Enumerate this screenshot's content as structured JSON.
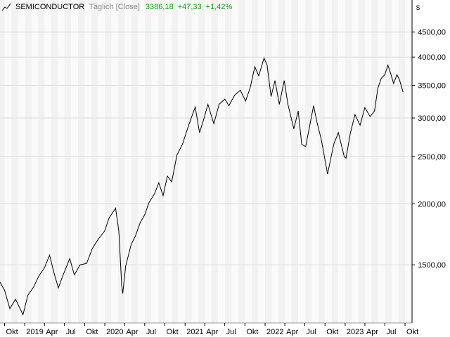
{
  "header": {
    "symbol": "SEMICONDUCTOR",
    "interval": "Täglich",
    "mode": "[Close]",
    "last": "3386,18",
    "change": "+47,33",
    "change_pct": "+1,42%",
    "currency": "$",
    "positive_color": "#1a9a1a"
  },
  "chart_data": {
    "type": "line",
    "yscale": "log",
    "ylim": [
      1140,
      4900
    ],
    "grid": true,
    "y_ticks": [
      {
        "value": 1500,
        "label": "1500,00"
      },
      {
        "value": 2000,
        "label": "2000,00"
      },
      {
        "value": 2500,
        "label": "2500,00"
      },
      {
        "value": 3000,
        "label": "3000,00"
      },
      {
        "value": 3500,
        "label": "3500,00"
      },
      {
        "value": 4000,
        "label": "4000,00"
      },
      {
        "value": 4500,
        "label": "4500,00"
      }
    ],
    "x_ticks": [
      {
        "date": "2018-10-01",
        "label": "Okt"
      },
      {
        "date": "2019-01-01",
        "label": "2019"
      },
      {
        "date": "2019-04-01",
        "label": "Apr"
      },
      {
        "date": "2019-07-01",
        "label": "Jul"
      },
      {
        "date": "2019-10-01",
        "label": "Okt"
      },
      {
        "date": "2020-01-01",
        "label": "2020"
      },
      {
        "date": "2020-04-01",
        "label": "Apr"
      },
      {
        "date": "2020-07-01",
        "label": "Jul"
      },
      {
        "date": "2020-10-01",
        "label": "Okt"
      },
      {
        "date": "2021-01-01",
        "label": "2021"
      },
      {
        "date": "2021-04-01",
        "label": "Apr"
      },
      {
        "date": "2021-07-01",
        "label": "Jul"
      },
      {
        "date": "2021-10-01",
        "label": "Okt"
      },
      {
        "date": "2022-01-01",
        "label": "2022"
      },
      {
        "date": "2022-04-01",
        "label": "Apr"
      },
      {
        "date": "2022-07-01",
        "label": "Jul"
      },
      {
        "date": "2022-10-01",
        "label": "Okt"
      },
      {
        "date": "2023-01-01",
        "label": "2023"
      },
      {
        "date": "2023-04-01",
        "label": "Apr"
      },
      {
        "date": "2023-07-01",
        "label": "Jul"
      },
      {
        "date": "2023-10-01",
        "label": "Okt"
      }
    ],
    "series": [
      {
        "color": "#000000",
        "points": [
          [
            "2018-09-05",
            1395
          ],
          [
            "2018-10-01",
            1330
          ],
          [
            "2018-10-25",
            1220
          ],
          [
            "2018-11-20",
            1275
          ],
          [
            "2018-12-24",
            1185
          ],
          [
            "2019-01-15",
            1300
          ],
          [
            "2019-02-10",
            1350
          ],
          [
            "2019-03-05",
            1420
          ],
          [
            "2019-04-01",
            1480
          ],
          [
            "2019-04-24",
            1570
          ],
          [
            "2019-05-15",
            1440
          ],
          [
            "2019-06-03",
            1345
          ],
          [
            "2019-06-25",
            1430
          ],
          [
            "2019-07-25",
            1545
          ],
          [
            "2019-08-15",
            1430
          ],
          [
            "2019-09-10",
            1500
          ],
          [
            "2019-10-10",
            1510
          ],
          [
            "2019-11-05",
            1620
          ],
          [
            "2019-12-01",
            1690
          ],
          [
            "2019-12-31",
            1760
          ],
          [
            "2020-01-20",
            1870
          ],
          [
            "2020-02-19",
            1960
          ],
          [
            "2020-03-05",
            1760
          ],
          [
            "2020-03-18",
            1360
          ],
          [
            "2020-03-23",
            1310
          ],
          [
            "2020-04-05",
            1490
          ],
          [
            "2020-04-30",
            1650
          ],
          [
            "2020-05-20",
            1720
          ],
          [
            "2020-06-10",
            1830
          ],
          [
            "2020-07-01",
            1900
          ],
          [
            "2020-07-20",
            2010
          ],
          [
            "2020-08-15",
            2100
          ],
          [
            "2020-09-03",
            2210
          ],
          [
            "2020-09-23",
            2080
          ],
          [
            "2020-10-12",
            2280
          ],
          [
            "2020-11-01",
            2220
          ],
          [
            "2020-11-25",
            2520
          ],
          [
            "2020-12-20",
            2650
          ],
          [
            "2021-01-15",
            2880
          ],
          [
            "2021-02-16",
            3160
          ],
          [
            "2021-03-08",
            2800
          ],
          [
            "2021-03-25",
            2960
          ],
          [
            "2021-04-15",
            3200
          ],
          [
            "2021-05-12",
            2920
          ],
          [
            "2021-06-05",
            3200
          ],
          [
            "2021-07-01",
            3280
          ],
          [
            "2021-07-20",
            3180
          ],
          [
            "2021-08-15",
            3340
          ],
          [
            "2021-09-10",
            3420
          ],
          [
            "2021-10-04",
            3250
          ],
          [
            "2021-10-25",
            3460
          ],
          [
            "2021-11-15",
            3820
          ],
          [
            "2021-12-03",
            3660
          ],
          [
            "2021-12-27",
            3980
          ],
          [
            "2022-01-10",
            3850
          ],
          [
            "2022-01-28",
            3320
          ],
          [
            "2022-02-15",
            3580
          ],
          [
            "2022-03-07",
            3200
          ],
          [
            "2022-03-29",
            3580
          ],
          [
            "2022-04-15",
            3200
          ],
          [
            "2022-05-12",
            2850
          ],
          [
            "2022-06-01",
            3100
          ],
          [
            "2022-06-17",
            2650
          ],
          [
            "2022-07-05",
            2620
          ],
          [
            "2022-08-10",
            3180
          ],
          [
            "2022-08-25",
            2950
          ],
          [
            "2022-09-15",
            2700
          ],
          [
            "2022-10-13",
            2300
          ],
          [
            "2022-10-25",
            2450
          ],
          [
            "2022-11-10",
            2650
          ],
          [
            "2022-12-01",
            2800
          ],
          [
            "2022-12-28",
            2500
          ],
          [
            "2023-01-05",
            2480
          ],
          [
            "2023-01-25",
            2800
          ],
          [
            "2023-02-15",
            3050
          ],
          [
            "2023-03-10",
            2900
          ],
          [
            "2023-04-01",
            3150
          ],
          [
            "2023-04-25",
            3020
          ],
          [
            "2023-05-15",
            3100
          ],
          [
            "2023-05-30",
            3450
          ],
          [
            "2023-06-15",
            3620
          ],
          [
            "2023-07-01",
            3680
          ],
          [
            "2023-07-15",
            3850
          ],
          [
            "2023-07-28",
            3700
          ],
          [
            "2023-08-10",
            3530
          ],
          [
            "2023-08-25",
            3680
          ],
          [
            "2023-09-05",
            3600
          ],
          [
            "2023-09-15",
            3480
          ],
          [
            "2023-09-22",
            3390
          ]
        ]
      }
    ]
  }
}
